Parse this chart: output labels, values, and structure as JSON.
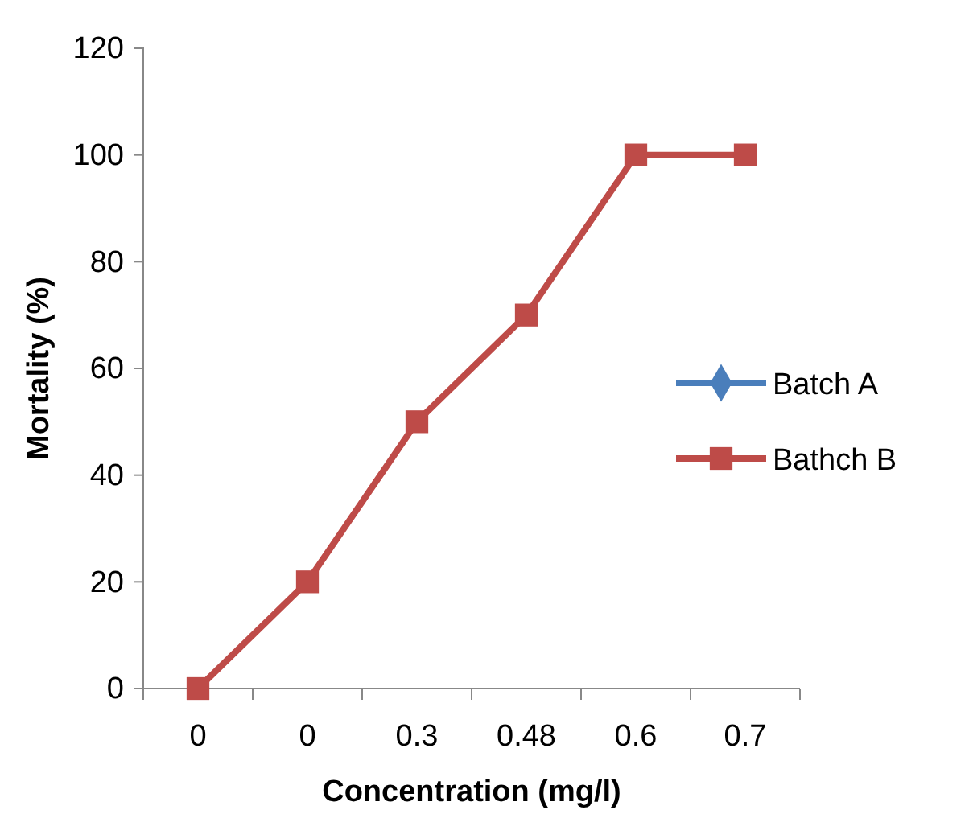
{
  "chart_data": {
    "type": "line",
    "xlabel": "Concentration (mg/l)",
    "ylabel": "Mortality (%)",
    "categories": [
      "0",
      "0",
      "0.3",
      "0.48",
      "0.6",
      "0.7"
    ],
    "series": [
      {
        "name": "Batch A",
        "color": "#4a7ebb",
        "marker": "diamond",
        "values": [
          null,
          null,
          null,
          null,
          null,
          null
        ]
      },
      {
        "name": "Bathch B",
        "color": "#be4b48",
        "marker": "square",
        "values": [
          0,
          20,
          50,
          70,
          100,
          100
        ]
      }
    ],
    "ylim": [
      0,
      120
    ],
    "yticks": [
      0,
      20,
      40,
      60,
      80,
      100,
      120
    ],
    "grid": false,
    "legend": "right"
  }
}
